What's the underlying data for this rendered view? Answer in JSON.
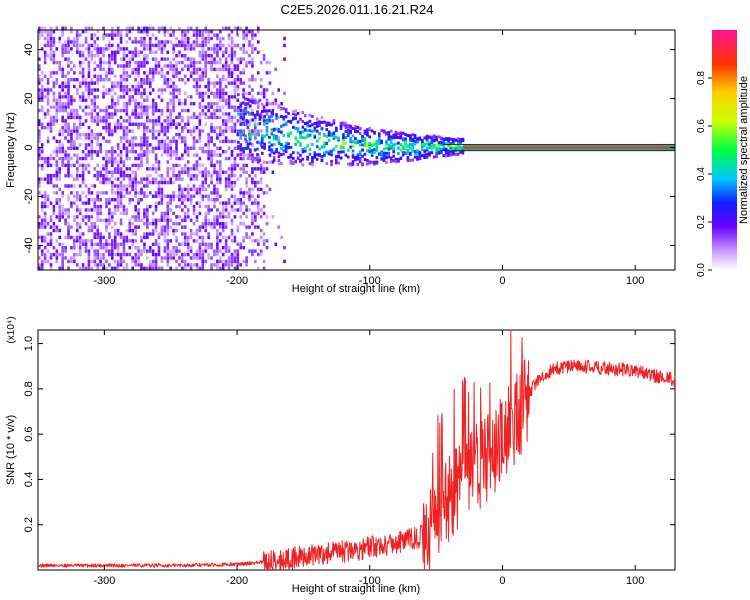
{
  "title": "C2E5.2026.011.16.21.R24",
  "chart_data": [
    {
      "type": "heatmap",
      "name": "spectrogram",
      "xlabel": "Height of straight line (km)",
      "ylabel": "Frequency (Hz)",
      "xlim": [
        -350,
        130
      ],
      "ylim": [
        -50,
        48
      ],
      "x_ticks": [
        -300,
        -200,
        -100,
        0,
        100
      ],
      "x_tick_labels": [
        "-300",
        "-200",
        "-100",
        "0",
        "100"
      ],
      "y_ticks": [
        -40,
        -20,
        0,
        20,
        40
      ],
      "y_tick_labels": [
        "-40",
        "-20",
        "0",
        "20",
        "40"
      ],
      "colorbar": {
        "label": "Normalized spectral amplitude",
        "range": [
          0,
          1
        ],
        "ticks": [
          0.0,
          0.2,
          0.4,
          0.6,
          0.8
        ],
        "tick_labels": [
          "0.0",
          "0.2",
          "0.4",
          "0.6",
          "0.8"
        ]
      },
      "features": [
        {
          "region": "noise",
          "x_range": [
            -350,
            -165
          ],
          "freq_range": [
            -50,
            48
          ],
          "amplitude": 0.15
        },
        {
          "region": "converging",
          "x_range": [
            -200,
            -30
          ],
          "freq_center": [
            8,
            0
          ],
          "freq_spread": [
            14,
            3
          ],
          "amplitude": 0.35
        },
        {
          "region": "carrier",
          "x_range": [
            -30,
            130
          ],
          "freq_center": 0,
          "amplitude": 0.95
        }
      ]
    },
    {
      "type": "line",
      "name": "snr",
      "xlabel": "Height of straight line (km)",
      "ylabel": "SNR (10 * v/v)",
      "scale_label": "(x10⁴)",
      "xlim": [
        -350,
        130
      ],
      "ylim": [
        0,
        1.06
      ],
      "x_ticks": [
        -300,
        -200,
        -100,
        0,
        100
      ],
      "x_tick_labels": [
        "-300",
        "-200",
        "-100",
        "0",
        "100"
      ],
      "y_ticks": [
        0.2,
        0.4,
        0.6,
        0.8,
        1.0
      ],
      "y_tick_labels": [
        "0.2",
        "0.4",
        "0.6",
        "0.8",
        "1.0"
      ],
      "line_color": "#ee2222",
      "series": [
        {
          "name": "SNR",
          "x": [
            -350,
            -250,
            -200,
            -170,
            -150,
            -120,
            -100,
            -80,
            -60,
            -50,
            -40,
            -30,
            -20,
            -10,
            0,
            5,
            10,
            15,
            20,
            30,
            40,
            50,
            60,
            80,
            100,
            120,
            130
          ],
          "values": [
            0.02,
            0.02,
            0.025,
            0.04,
            0.06,
            0.08,
            0.1,
            0.12,
            0.15,
            0.22,
            0.32,
            0.4,
            0.45,
            0.5,
            0.58,
            0.62,
            0.66,
            0.72,
            0.78,
            0.86,
            0.89,
            0.9,
            0.9,
            0.89,
            0.88,
            0.85,
            0.84
          ]
        }
      ]
    }
  ]
}
